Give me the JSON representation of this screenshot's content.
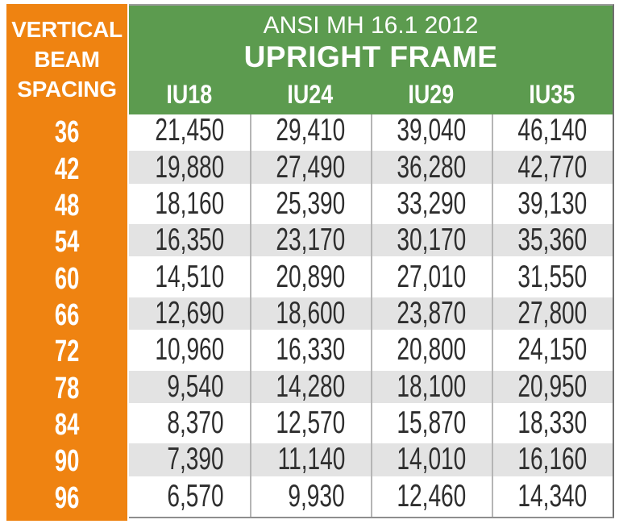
{
  "header": {
    "left": {
      "line1": "VERTICAL",
      "line2": "BEAM",
      "line3": "SPACING"
    },
    "standard": "ANSI MH 16.1 2012",
    "title": "UPRIGHT FRAME"
  },
  "table": {
    "columns": [
      "IU18",
      "IU24",
      "IU29",
      "IU35"
    ],
    "rows": [
      {
        "spacing": "36",
        "values": [
          "21,450",
          "29,410",
          "39,040",
          "46,140"
        ]
      },
      {
        "spacing": "42",
        "values": [
          "19,880",
          "27,490",
          "36,280",
          "42,770"
        ]
      },
      {
        "spacing": "48",
        "values": [
          "18,160",
          "25,390",
          "33,290",
          "39,130"
        ]
      },
      {
        "spacing": "54",
        "values": [
          "16,350",
          "23,170",
          "30,170",
          "35,360"
        ]
      },
      {
        "spacing": "60",
        "values": [
          "14,510",
          "20,890",
          "27,010",
          "31,550"
        ]
      },
      {
        "spacing": "66",
        "values": [
          "12,690",
          "18,600",
          "23,870",
          "27,800"
        ]
      },
      {
        "spacing": "72",
        "values": [
          "10,960",
          "16,330",
          "20,800",
          "24,150"
        ]
      },
      {
        "spacing": "78",
        "values": [
          "9,540",
          "14,280",
          "18,100",
          "20,950"
        ]
      },
      {
        "spacing": "84",
        "values": [
          "8,370",
          "12,570",
          "15,870",
          "18,330"
        ]
      },
      {
        "spacing": "90",
        "values": [
          "7,390",
          "11,140",
          "14,010",
          "16,160"
        ]
      },
      {
        "spacing": "96",
        "values": [
          "6,570",
          "9,930",
          "12,460",
          "14,340"
        ]
      }
    ]
  },
  "chart_data": {
    "type": "table",
    "title": "UPRIGHT FRAME",
    "subtitle": "ANSI MH 16.1 2012",
    "row_header": "VERTICAL BEAM SPACING",
    "categories": [
      36,
      42,
      48,
      54,
      60,
      66,
      72,
      78,
      84,
      90,
      96
    ],
    "series": [
      {
        "name": "IU18",
        "values": [
          21450,
          19880,
          18160,
          16350,
          14510,
          12690,
          10960,
          9540,
          8370,
          7390,
          6570
        ]
      },
      {
        "name": "IU24",
        "values": [
          29410,
          27490,
          25390,
          23170,
          20890,
          18600,
          16330,
          14280,
          12570,
          11140,
          9930
        ]
      },
      {
        "name": "IU29",
        "values": [
          39040,
          36280,
          33290,
          30170,
          27010,
          23870,
          20800,
          18100,
          15870,
          14010,
          12460
        ]
      },
      {
        "name": "IU35",
        "values": [
          46140,
          42770,
          39130,
          35360,
          31550,
          27800,
          24150,
          20950,
          18330,
          16160,
          14340
        ]
      }
    ]
  },
  "colors": {
    "orange": "#EF8311",
    "green": "#5C9B4F",
    "row_alt": "#E3E3E3",
    "divider": "#B5B5B5",
    "border": "#8E8E8E",
    "text": "#2E2E2E"
  }
}
